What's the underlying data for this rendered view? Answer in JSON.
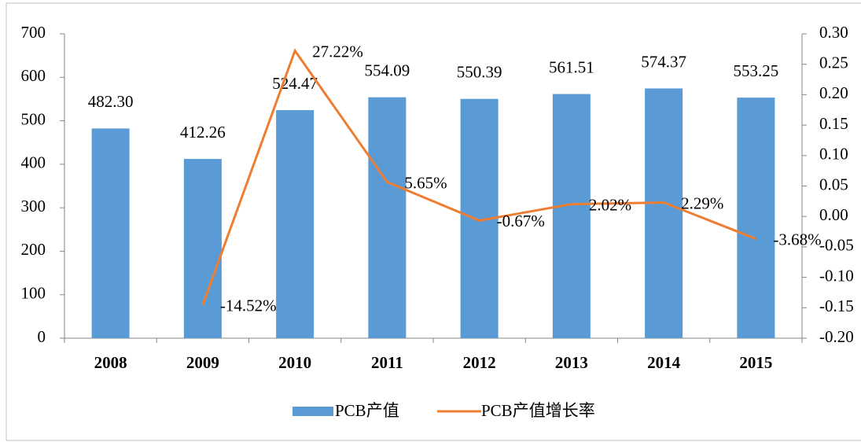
{
  "chart_data": {
    "type": "bar-line",
    "categories": [
      "2008",
      "2009",
      "2010",
      "2011",
      "2012",
      "2013",
      "2014",
      "2015"
    ],
    "series": [
      {
        "name": "PCB产值",
        "type": "bar",
        "color": "#5b9bd5",
        "values": [
          482.3,
          412.26,
          524.47,
          554.09,
          550.39,
          561.51,
          574.37,
          553.25
        ],
        "value_labels": [
          "482.30",
          "412.26",
          "524.47",
          "554.09",
          "550.39",
          "561.51",
          "574.37",
          "553.25"
        ]
      },
      {
        "name": "PCB产值增长率",
        "type": "line",
        "axis": "y2",
        "color": "#ed7d31",
        "values": [
          null,
          -0.1452,
          0.2722,
          0.0565,
          -0.0067,
          0.0202,
          0.0229,
          -0.0368
        ],
        "value_labels": [
          null,
          "-14.52%",
          "27.22%",
          "5.65%",
          "-0.67%",
          "2.02%",
          "2.29%",
          "-3.68%"
        ]
      }
    ],
    "ylim": [
      0,
      700
    ],
    "yticks": [
      0,
      100,
      200,
      300,
      400,
      500,
      600,
      700
    ],
    "y2lim": [
      -0.2,
      0.3
    ],
    "y2ticks": [
      {
        "value": -0.2,
        "label": "-0.20"
      },
      {
        "value": -0.15,
        "label": "-0.15"
      },
      {
        "value": -0.1,
        "label": "-0.10"
      },
      {
        "value": -0.05,
        "label": "-0.05"
      },
      {
        "value": 0,
        "label": "0.00"
      },
      {
        "value": 0.05,
        "label": "0.05"
      },
      {
        "value": 0.1,
        "label": "0.10"
      },
      {
        "value": 0.15,
        "label": "0.15"
      },
      {
        "value": 0.2,
        "label": "0.20"
      },
      {
        "value": 0.25,
        "label": "0.25"
      },
      {
        "value": 0.3,
        "label": "0.30"
      }
    ],
    "legend": "bottom"
  }
}
